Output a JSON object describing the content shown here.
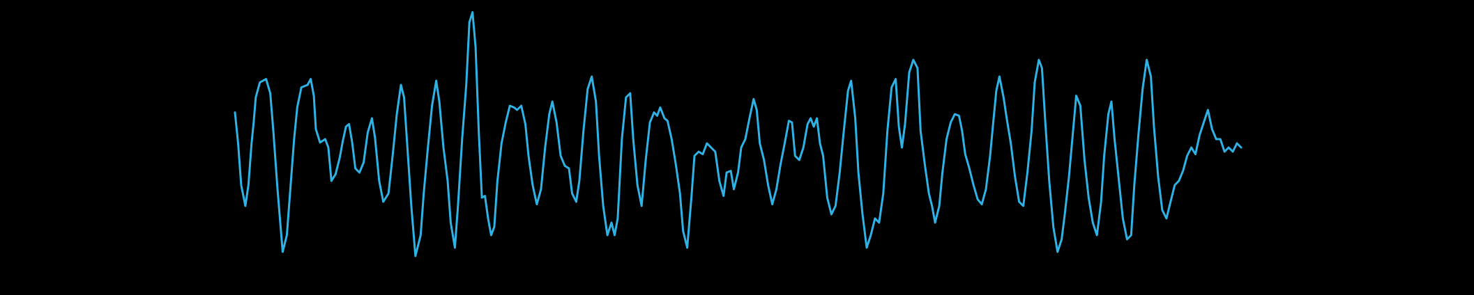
{
  "waveform": {
    "background_color": "#000000",
    "stroke_color": "#2fb3e6",
    "points": [
      [
        0.0,
        0.42
      ],
      [
        0.003,
        0.05
      ],
      [
        0.006,
        -0.45
      ],
      [
        0.01,
        -0.7
      ],
      [
        0.013,
        -0.45
      ],
      [
        0.016,
        0.05
      ],
      [
        0.018,
        0.3
      ],
      [
        0.02,
        0.6
      ],
      [
        0.024,
        0.78
      ],
      [
        0.03,
        0.82
      ],
      [
        0.034,
        0.65
      ],
      [
        0.037,
        0.2
      ],
      [
        0.041,
        -0.5
      ],
      [
        0.046,
        -1.25
      ],
      [
        0.05,
        -1.05
      ],
      [
        0.054,
        -0.4
      ],
      [
        0.057,
        0.1
      ],
      [
        0.06,
        0.48
      ],
      [
        0.064,
        0.72
      ],
      [
        0.07,
        0.75
      ],
      [
        0.073,
        0.82
      ],
      [
        0.076,
        0.62
      ],
      [
        0.078,
        0.22
      ],
      [
        0.082,
        0.06
      ],
      [
        0.087,
        0.1
      ],
      [
        0.09,
        0.0
      ],
      [
        0.093,
        -0.4
      ],
      [
        0.097,
        -0.32
      ],
      [
        0.101,
        -0.12
      ],
      [
        0.104,
        0.08
      ],
      [
        0.107,
        0.25
      ],
      [
        0.11,
        0.28
      ],
      [
        0.113,
        0.06
      ],
      [
        0.116,
        -0.25
      ],
      [
        0.12,
        -0.3
      ],
      [
        0.124,
        -0.18
      ],
      [
        0.128,
        0.18
      ],
      [
        0.132,
        0.35
      ],
      [
        0.135,
        0.12
      ],
      [
        0.139,
        -0.4
      ],
      [
        0.143,
        -0.65
      ],
      [
        0.148,
        -0.55
      ],
      [
        0.152,
        -0.1
      ],
      [
        0.156,
        0.4
      ],
      [
        0.16,
        0.75
      ],
      [
        0.163,
        0.6
      ],
      [
        0.166,
        0.05
      ],
      [
        0.17,
        -0.7
      ],
      [
        0.174,
        -1.3
      ],
      [
        0.179,
        -1.05
      ],
      [
        0.182,
        -0.55
      ],
      [
        0.186,
        0.0
      ],
      [
        0.19,
        0.5
      ],
      [
        0.194,
        0.8
      ],
      [
        0.197,
        0.55
      ],
      [
        0.201,
        0.0
      ],
      [
        0.205,
        -0.4
      ],
      [
        0.208,
        -0.9
      ],
      [
        0.212,
        -1.2
      ],
      [
        0.215,
        -0.7
      ],
      [
        0.219,
        0.1
      ],
      [
        0.223,
        0.75
      ],
      [
        0.226,
        1.5
      ],
      [
        0.229,
        1.62
      ],
      [
        0.232,
        1.2
      ],
      [
        0.235,
        0.2
      ],
      [
        0.238,
        -0.6
      ],
      [
        0.241,
        -0.58
      ],
      [
        0.244,
        -0.85
      ],
      [
        0.247,
        -1.05
      ],
      [
        0.25,
        -0.95
      ],
      [
        0.253,
        -0.4
      ],
      [
        0.257,
        0.05
      ],
      [
        0.261,
        0.3
      ],
      [
        0.265,
        0.5
      ],
      [
        0.269,
        0.48
      ],
      [
        0.272,
        0.45
      ],
      [
        0.276,
        0.5
      ],
      [
        0.28,
        0.28
      ],
      [
        0.283,
        -0.1
      ],
      [
        0.287,
        -0.45
      ],
      [
        0.291,
        -0.68
      ],
      [
        0.295,
        -0.5
      ],
      [
        0.299,
        0.0
      ],
      [
        0.303,
        0.4
      ],
      [
        0.306,
        0.55
      ],
      [
        0.31,
        0.3
      ],
      [
        0.314,
        -0.1
      ],
      [
        0.318,
        -0.22
      ],
      [
        0.322,
        -0.25
      ],
      [
        0.325,
        -0.55
      ],
      [
        0.329,
        -0.65
      ],
      [
        0.332,
        -0.4
      ],
      [
        0.336,
        0.2
      ],
      [
        0.34,
        0.7
      ],
      [
        0.344,
        0.85
      ],
      [
        0.348,
        0.55
      ],
      [
        0.351,
        -0.1
      ],
      [
        0.355,
        -0.7
      ],
      [
        0.359,
        -1.05
      ],
      [
        0.363,
        -0.9
      ],
      [
        0.366,
        -1.05
      ],
      [
        0.369,
        -0.85
      ],
      [
        0.373,
        0.1
      ],
      [
        0.377,
        0.6
      ],
      [
        0.381,
        0.65
      ],
      [
        0.384,
        0.1
      ],
      [
        0.388,
        -0.45
      ],
      [
        0.392,
        -0.7
      ],
      [
        0.396,
        -0.15
      ],
      [
        0.4,
        0.3
      ],
      [
        0.404,
        0.42
      ],
      [
        0.407,
        0.38
      ],
      [
        0.41,
        0.48
      ],
      [
        0.414,
        0.35
      ],
      [
        0.417,
        0.32
      ],
      [
        0.421,
        0.1
      ],
      [
        0.425,
        -0.2
      ],
      [
        0.429,
        -0.55
      ],
      [
        0.432,
        -1.0
      ],
      [
        0.436,
        -1.2
      ],
      [
        0.44,
        -0.6
      ],
      [
        0.443,
        -0.1
      ],
      [
        0.447,
        -0.05
      ],
      [
        0.451,
        -0.08
      ],
      [
        0.455,
        0.05
      ],
      [
        0.459,
        0.0
      ],
      [
        0.463,
        -0.05
      ],
      [
        0.467,
        -0.4
      ],
      [
        0.471,
        -0.58
      ],
      [
        0.474,
        -0.3
      ],
      [
        0.478,
        -0.28
      ],
      [
        0.481,
        -0.5
      ],
      [
        0.485,
        -0.3
      ],
      [
        0.488,
        0.0
      ],
      [
        0.492,
        0.1
      ],
      [
        0.496,
        0.35
      ],
      [
        0.5,
        0.58
      ],
      [
        0.503,
        0.45
      ],
      [
        0.506,
        0.05
      ],
      [
        0.51,
        -0.15
      ],
      [
        0.514,
        -0.45
      ],
      [
        0.518,
        -0.68
      ],
      [
        0.522,
        -0.5
      ],
      [
        0.526,
        -0.2
      ],
      [
        0.53,
        0.05
      ],
      [
        0.534,
        0.32
      ],
      [
        0.537,
        0.3
      ],
      [
        0.54,
        -0.1
      ],
      [
        0.544,
        -0.15
      ],
      [
        0.548,
        0.0
      ],
      [
        0.552,
        0.28
      ],
      [
        0.555,
        0.35
      ],
      [
        0.558,
        0.25
      ],
      [
        0.561,
        0.35
      ],
      [
        0.564,
        0.05
      ],
      [
        0.567,
        -0.1
      ],
      [
        0.571,
        -0.6
      ],
      [
        0.575,
        -0.8
      ],
      [
        0.579,
        -0.7
      ],
      [
        0.583,
        -0.3
      ],
      [
        0.587,
        0.2
      ],
      [
        0.591,
        0.68
      ],
      [
        0.594,
        0.8
      ],
      [
        0.598,
        0.35
      ],
      [
        0.601,
        -0.3
      ],
      [
        0.605,
        -0.8
      ],
      [
        0.609,
        -1.2
      ],
      [
        0.613,
        -1.05
      ],
      [
        0.617,
        -0.85
      ],
      [
        0.621,
        -0.9
      ],
      [
        0.625,
        -0.55
      ],
      [
        0.629,
        0.2
      ],
      [
        0.633,
        0.72
      ],
      [
        0.637,
        0.82
      ],
      [
        0.64,
        0.25
      ],
      [
        0.643,
        0.0
      ],
      [
        0.646,
        0.28
      ],
      [
        0.65,
        0.9
      ],
      [
        0.654,
        1.05
      ],
      [
        0.658,
        0.95
      ],
      [
        0.661,
        0.2
      ],
      [
        0.665,
        -0.2
      ],
      [
        0.669,
        -0.55
      ],
      [
        0.672,
        -0.7
      ],
      [
        0.675,
        -0.9
      ],
      [
        0.679,
        -0.7
      ],
      [
        0.682,
        -0.3
      ],
      [
        0.686,
        0.1
      ],
      [
        0.69,
        0.3
      ],
      [
        0.694,
        0.4
      ],
      [
        0.698,
        0.38
      ],
      [
        0.701,
        0.2
      ],
      [
        0.704,
        -0.08
      ],
      [
        0.708,
        -0.25
      ],
      [
        0.712,
        -0.45
      ],
      [
        0.716,
        -0.62
      ],
      [
        0.72,
        -0.68
      ],
      [
        0.724,
        -0.5
      ],
      [
        0.728,
        -0.1
      ],
      [
        0.731,
        0.3
      ],
      [
        0.734,
        0.68
      ],
      [
        0.737,
        0.85
      ],
      [
        0.741,
        0.6
      ],
      [
        0.744,
        0.35
      ],
      [
        0.748,
        0.05
      ],
      [
        0.752,
        -0.35
      ],
      [
        0.756,
        -0.65
      ],
      [
        0.76,
        -0.7
      ],
      [
        0.764,
        -0.3
      ],
      [
        0.768,
        0.2
      ],
      [
        0.771,
        0.78
      ],
      [
        0.775,
        1.05
      ],
      [
        0.778,
        0.95
      ],
      [
        0.781,
        0.35
      ],
      [
        0.785,
        -0.4
      ],
      [
        0.789,
        -0.95
      ],
      [
        0.793,
        -1.25
      ],
      [
        0.797,
        -1.1
      ],
      [
        0.8,
        -0.8
      ],
      [
        0.804,
        -0.35
      ],
      [
        0.808,
        0.2
      ],
      [
        0.811,
        0.62
      ],
      [
        0.815,
        0.5
      ],
      [
        0.819,
        -0.15
      ],
      [
        0.823,
        -0.6
      ],
      [
        0.827,
        -0.9
      ],
      [
        0.831,
        -1.05
      ],
      [
        0.835,
        -0.65
      ],
      [
        0.838,
        -0.1
      ],
      [
        0.842,
        0.4
      ],
      [
        0.845,
        0.55
      ],
      [
        0.848,
        0.1
      ],
      [
        0.852,
        -0.38
      ],
      [
        0.856,
        -0.85
      ],
      [
        0.86,
        -1.1
      ],
      [
        0.864,
        -1.05
      ],
      [
        0.867,
        -0.45
      ],
      [
        0.871,
        0.15
      ],
      [
        0.875,
        0.7
      ],
      [
        0.879,
        1.05
      ],
      [
        0.883,
        0.85
      ],
      [
        0.886,
        0.25
      ],
      [
        0.89,
        -0.35
      ],
      [
        0.894,
        -0.75
      ],
      [
        0.898,
        -0.85
      ],
      [
        0.902,
        -0.65
      ],
      [
        0.906,
        -0.45
      ],
      [
        0.91,
        -0.4
      ],
      [
        0.914,
        -0.28
      ],
      [
        0.918,
        -0.1
      ],
      [
        0.922,
        0.0
      ],
      [
        0.926,
        -0.08
      ],
      [
        0.93,
        0.15
      ],
      [
        0.934,
        0.3
      ],
      [
        0.938,
        0.45
      ],
      [
        0.942,
        0.22
      ],
      [
        0.946,
        0.1
      ],
      [
        0.95,
        0.1
      ],
      [
        0.954,
        -0.05
      ],
      [
        0.958,
        0.0
      ],
      [
        0.962,
        -0.05
      ],
      [
        0.966,
        0.05
      ],
      [
        0.97,
        0.0
      ]
    ]
  }
}
